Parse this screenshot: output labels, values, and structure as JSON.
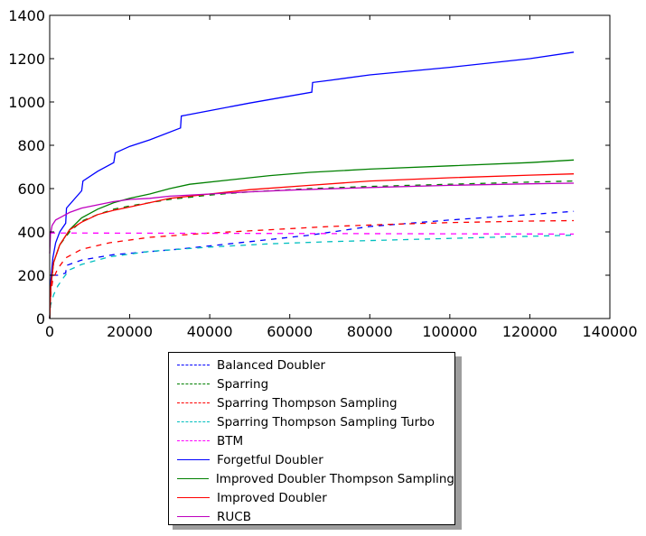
{
  "chart_data": {
    "type": "line",
    "title": "",
    "xlabel": "",
    "ylabel": "",
    "xlim": [
      0,
      140000
    ],
    "ylim": [
      0,
      1400
    ],
    "xticks": [
      0,
      20000,
      40000,
      60000,
      80000,
      100000,
      120000,
      140000
    ],
    "yticks": [
      0,
      200,
      400,
      600,
      800,
      1000,
      1200,
      1400
    ],
    "grid": false,
    "legend_position": "below-center",
    "series": [
      {
        "name": "Balanced Doubler",
        "color": "#0000ff",
        "dash": "dashed",
        "points": [
          [
            0,
            0
          ],
          [
            200,
            100
          ],
          [
            500,
            180
          ],
          [
            800,
            200
          ],
          [
            2000,
            200
          ],
          [
            4000,
            210
          ],
          [
            4200,
            245
          ],
          [
            8000,
            270
          ],
          [
            16000,
            295
          ],
          [
            32000,
            320
          ],
          [
            50000,
            355
          ],
          [
            65000,
            385
          ],
          [
            80000,
            425
          ],
          [
            100000,
            455
          ],
          [
            120000,
            480
          ],
          [
            131000,
            495
          ]
        ]
      },
      {
        "name": "Sparring",
        "color": "#008000",
        "dash": "dashed",
        "points": [
          [
            0,
            0
          ],
          [
            300,
            150
          ],
          [
            1000,
            260
          ],
          [
            2500,
            340
          ],
          [
            5000,
            400
          ],
          [
            8000,
            450
          ],
          [
            12000,
            480
          ],
          [
            16000,
            505
          ],
          [
            20000,
            520
          ],
          [
            30000,
            550
          ],
          [
            40000,
            570
          ],
          [
            50000,
            585
          ],
          [
            65000,
            600
          ],
          [
            80000,
            610
          ],
          [
            100000,
            620
          ],
          [
            120000,
            630
          ],
          [
            131000,
            635
          ]
        ]
      },
      {
        "name": "Sparring Thompson Sampling",
        "color": "#ff0000",
        "dash": "dashed",
        "points": [
          [
            0,
            0
          ],
          [
            300,
            120
          ],
          [
            800,
            180
          ],
          [
            2000,
            230
          ],
          [
            4000,
            280
          ],
          [
            8000,
            320
          ],
          [
            15000,
            350
          ],
          [
            25000,
            375
          ],
          [
            40000,
            395
          ],
          [
            55000,
            410
          ],
          [
            70000,
            425
          ],
          [
            85000,
            435
          ],
          [
            100000,
            443
          ],
          [
            120000,
            450
          ],
          [
            131000,
            452
          ]
        ]
      },
      {
        "name": "Sparring Thompson Sampling Turbo",
        "color": "#00bfbf",
        "dash": "dashed",
        "points": [
          [
            0,
            0
          ],
          [
            200,
            60
          ],
          [
            1000,
            110
          ],
          [
            2000,
            150
          ],
          [
            3500,
            190
          ],
          [
            5000,
            225
          ],
          [
            8000,
            250
          ],
          [
            15000,
            285
          ],
          [
            25000,
            310
          ],
          [
            40000,
            330
          ],
          [
            55000,
            345
          ],
          [
            70000,
            355
          ],
          [
            90000,
            365
          ],
          [
            110000,
            375
          ],
          [
            131000,
            385
          ]
        ]
      },
      {
        "name": "BTM",
        "color": "#ff00ff",
        "dash": "dashed",
        "points": [
          [
            0,
            395
          ],
          [
            131000,
            390
          ]
        ]
      },
      {
        "name": "Forgetful Doubler",
        "color": "#0000ff",
        "dash": "solid",
        "points": [
          [
            0,
            0
          ],
          [
            300,
            180
          ],
          [
            800,
            280
          ],
          [
            1500,
            350
          ],
          [
            2500,
            400
          ],
          [
            4000,
            440
          ],
          [
            4200,
            510
          ],
          [
            8000,
            590
          ],
          [
            8300,
            635
          ],
          [
            12000,
            680
          ],
          [
            16000,
            720
          ],
          [
            16400,
            765
          ],
          [
            20000,
            795
          ],
          [
            25000,
            825
          ],
          [
            32700,
            880
          ],
          [
            32900,
            935
          ],
          [
            40000,
            960
          ],
          [
            50000,
            995
          ],
          [
            65500,
            1045
          ],
          [
            65700,
            1090
          ],
          [
            70000,
            1100
          ],
          [
            80000,
            1125
          ],
          [
            100000,
            1160
          ],
          [
            120000,
            1200
          ],
          [
            131000,
            1230
          ]
        ]
      },
      {
        "name": "Improved Doubler Thompson Sampling",
        "color": "#008000",
        "dash": "solid",
        "points": [
          [
            0,
            0
          ],
          [
            300,
            150
          ],
          [
            1000,
            260
          ],
          [
            2500,
            340
          ],
          [
            5000,
            410
          ],
          [
            8000,
            465
          ],
          [
            12000,
            505
          ],
          [
            16000,
            535
          ],
          [
            20000,
            555
          ],
          [
            25000,
            575
          ],
          [
            30000,
            600
          ],
          [
            35000,
            620
          ],
          [
            45000,
            640
          ],
          [
            55000,
            660
          ],
          [
            65000,
            675
          ],
          [
            80000,
            690
          ],
          [
            100000,
            705
          ],
          [
            120000,
            720
          ],
          [
            131000,
            732
          ]
        ]
      },
      {
        "name": "Improved Doubler",
        "color": "#ff0000",
        "dash": "solid",
        "points": [
          [
            0,
            0
          ],
          [
            300,
            150
          ],
          [
            1000,
            260
          ],
          [
            2500,
            340
          ],
          [
            5000,
            410
          ],
          [
            8000,
            445
          ],
          [
            12000,
            480
          ],
          [
            16000,
            500
          ],
          [
            20000,
            515
          ],
          [
            25000,
            535
          ],
          [
            30000,
            555
          ],
          [
            40000,
            575
          ],
          [
            50000,
            595
          ],
          [
            65000,
            615
          ],
          [
            80000,
            635
          ],
          [
            100000,
            650
          ],
          [
            120000,
            662
          ],
          [
            131000,
            668
          ]
        ]
      },
      {
        "name": "RUCB",
        "color": "#bf00bf",
        "dash": "solid",
        "points": [
          [
            0,
            300
          ],
          [
            200,
            390
          ],
          [
            600,
            430
          ],
          [
            1500,
            455
          ],
          [
            3000,
            470
          ],
          [
            5000,
            490
          ],
          [
            8000,
            510
          ],
          [
            12000,
            525
          ],
          [
            16000,
            540
          ],
          [
            20000,
            550
          ],
          [
            25000,
            555
          ],
          [
            30000,
            565
          ],
          [
            40000,
            575
          ],
          [
            50000,
            585
          ],
          [
            60000,
            593
          ],
          [
            80000,
            605
          ],
          [
            100000,
            615
          ],
          [
            120000,
            622
          ],
          [
            131000,
            625
          ]
        ]
      }
    ]
  }
}
